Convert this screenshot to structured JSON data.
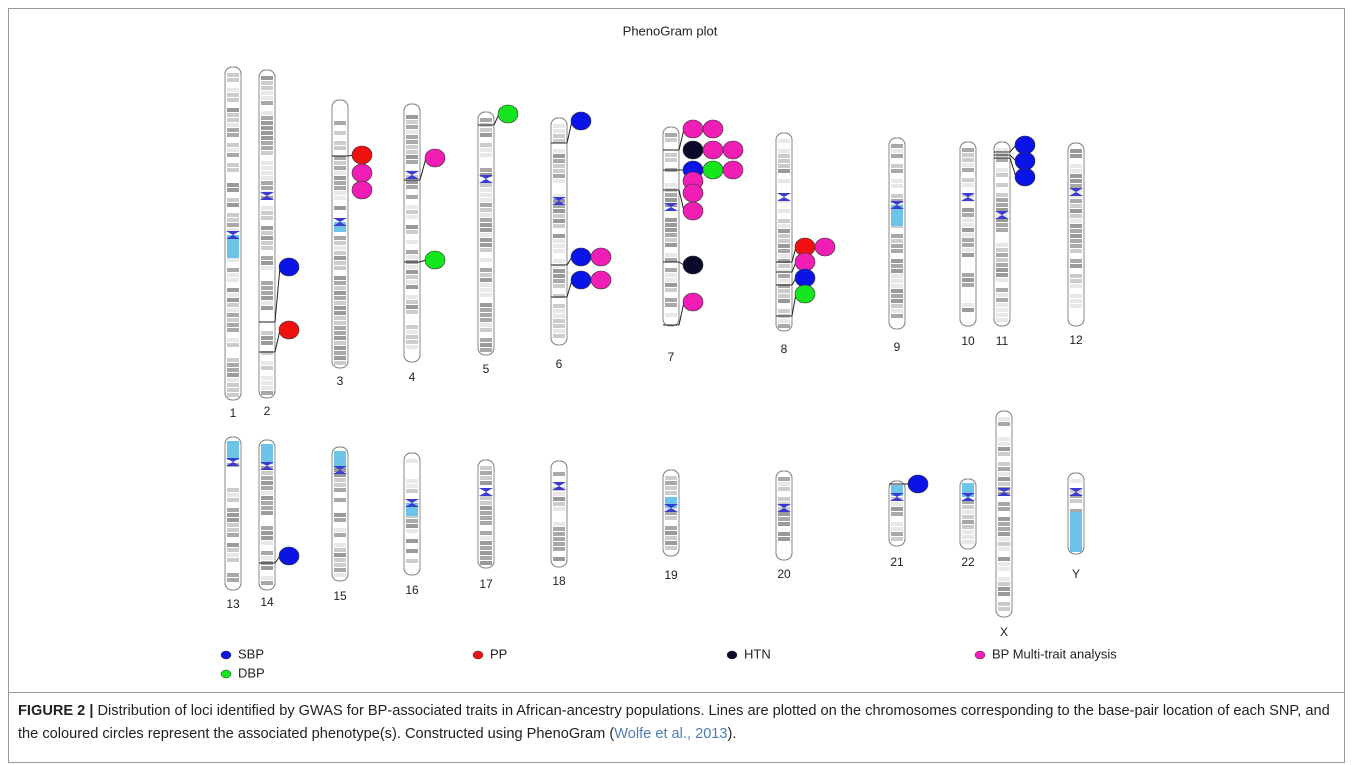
{
  "title": "PhenoGram plot",
  "chromosomes": [
    "1",
    "2",
    "3",
    "4",
    "5",
    "6",
    "7",
    "8",
    "9",
    "10",
    "11",
    "12",
    "13",
    "14",
    "15",
    "16",
    "17",
    "18",
    "19",
    "20",
    "21",
    "22",
    "X",
    "Y"
  ],
  "legend": [
    {
      "label": "SBP",
      "color": "#0a14e6"
    },
    {
      "label": "PP",
      "color": "#f01010"
    },
    {
      "label": "HTN",
      "color": "#0a0a2a"
    },
    {
      "label": "BP Multi-trait analysis",
      "color": "#f01eb4"
    },
    {
      "label": "DBP",
      "color": "#14e61e"
    }
  ],
  "caption": {
    "label": "FIGURE 2 |",
    "text": " Distribution of loci identified by GWAS for BP-associated traits in African-ancestry populations. Lines are plotted on the chromosomes corresponding to the base-pair location of each SNP, and the coloured circles represent the associated phenotype(s). Constructed using PhenoGram (",
    "citation": "Wolfe et al., 2013",
    "end": ")."
  }
}
